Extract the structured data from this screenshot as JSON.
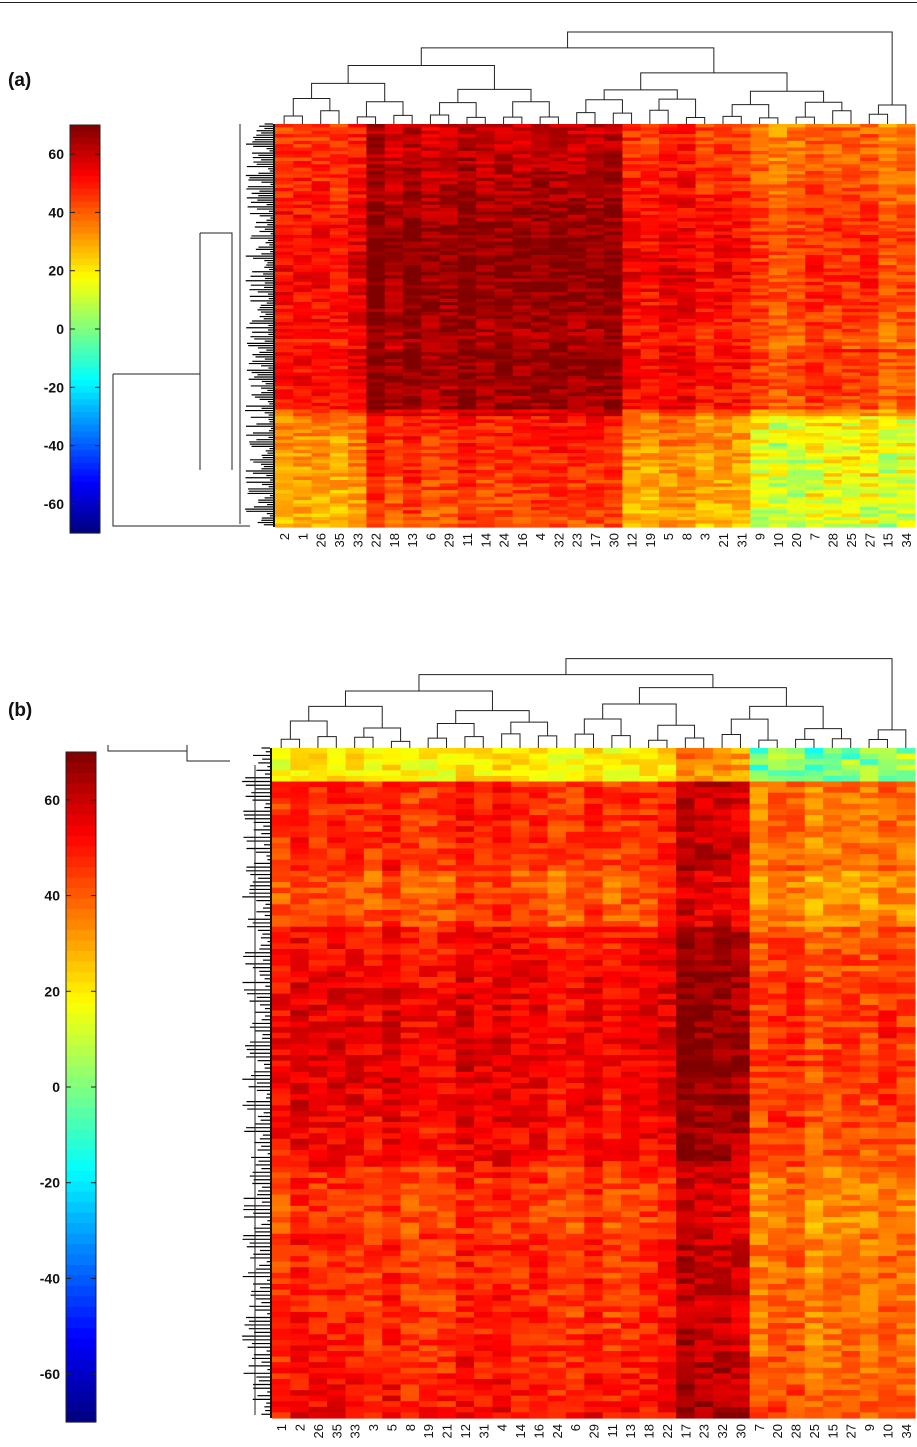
{
  "figure": {
    "panels": [
      {
        "label": "(a)"
      },
      {
        "label": "(b)"
      }
    ]
  },
  "chart_data": [
    {
      "type": "heatmap",
      "panel": "(a)",
      "title": "",
      "xlabel": "",
      "ylabel": "",
      "colormap": "jet",
      "colorbar": {
        "range": [
          -70,
          70
        ],
        "ticks": [
          60,
          40,
          20,
          0,
          -20,
          -40,
          -60
        ],
        "tick_labels": [
          "60",
          "40",
          "20",
          "0",
          "-20",
          "-40",
          "-60"
        ]
      },
      "column_labels": [
        "2",
        "1",
        "26",
        "35",
        "33",
        "22",
        "18",
        "13",
        "6",
        "29",
        "11",
        "14",
        "24",
        "16",
        "4",
        "32",
        "23",
        "17",
        "30",
        "12",
        "19",
        "5",
        "8",
        "3",
        "21",
        "31",
        "9",
        "10",
        "20",
        "7",
        "28",
        "25",
        "27",
        "15",
        "34"
      ],
      "row_dendrogram": true,
      "column_dendrogram": true,
      "cluster_columns": {
        "high_block": [
          "22",
          "18",
          "13",
          "6",
          "29",
          "11",
          "14",
          "24",
          "16",
          "4",
          "32",
          "23",
          "17",
          "30"
        ],
        "low_block": [
          "9",
          "10",
          "20",
          "7",
          "28",
          "25",
          "27",
          "15",
          "34"
        ]
      }
    },
    {
      "type": "heatmap",
      "panel": "(b)",
      "title": "",
      "xlabel": "",
      "ylabel": "",
      "colormap": "jet",
      "colorbar": {
        "range": [
          -70,
          70
        ],
        "ticks": [
          60,
          40,
          20,
          0,
          -20,
          -40,
          -60
        ],
        "tick_labels": [
          "60",
          "40",
          "20",
          "0",
          "-20",
          "-40",
          "-60"
        ]
      },
      "column_labels": [
        "1",
        "2",
        "26",
        "35",
        "33",
        "3",
        "5",
        "8",
        "19",
        "21",
        "12",
        "31",
        "4",
        "14",
        "16",
        "24",
        "6",
        "29",
        "11",
        "13",
        "18",
        "22",
        "17",
        "23",
        "32",
        "30",
        "7",
        "20",
        "28",
        "25",
        "15",
        "27",
        "9",
        "10",
        "34"
      ],
      "row_dendrogram": true,
      "column_dendrogram": true,
      "cluster_columns": {
        "high_block": [
          "17",
          "23",
          "32",
          "30"
        ],
        "low_block": [
          "7",
          "20",
          "28",
          "25",
          "15",
          "27",
          "9",
          "10",
          "34"
        ]
      }
    }
  ]
}
